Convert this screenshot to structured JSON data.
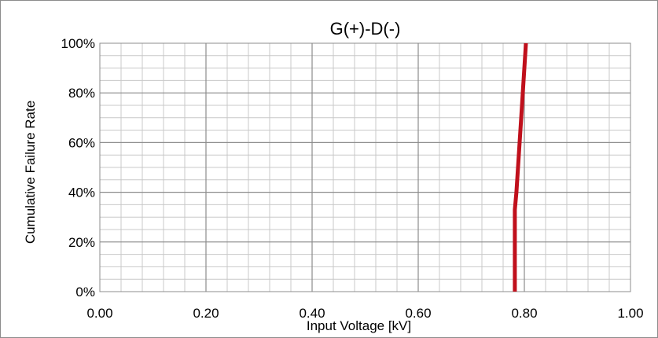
{
  "chart_data": {
    "type": "line",
    "title": "G(+)-D(-)",
    "xlabel": "Input Voltage [kV]",
    "ylabel": "Cumulative Failure Rate",
    "xlim": [
      0,
      1.0
    ],
    "ylim": [
      0,
      100
    ],
    "x_ticks": [
      "0.00",
      "0.20",
      "0.40",
      "0.60",
      "0.80",
      "1.00"
    ],
    "y_ticks": [
      "0%",
      "20%",
      "40%",
      "60%",
      "80%",
      "100%"
    ],
    "grid": true,
    "legend": "none",
    "series": [
      {
        "color": "#c0101c",
        "points": [
          {
            "x": 0.782,
            "y": 0
          },
          {
            "x": 0.782,
            "y": 33
          },
          {
            "x": 0.785,
            "y": 40
          },
          {
            "x": 0.794,
            "y": 70
          },
          {
            "x": 0.803,
            "y": 100
          }
        ]
      }
    ]
  }
}
